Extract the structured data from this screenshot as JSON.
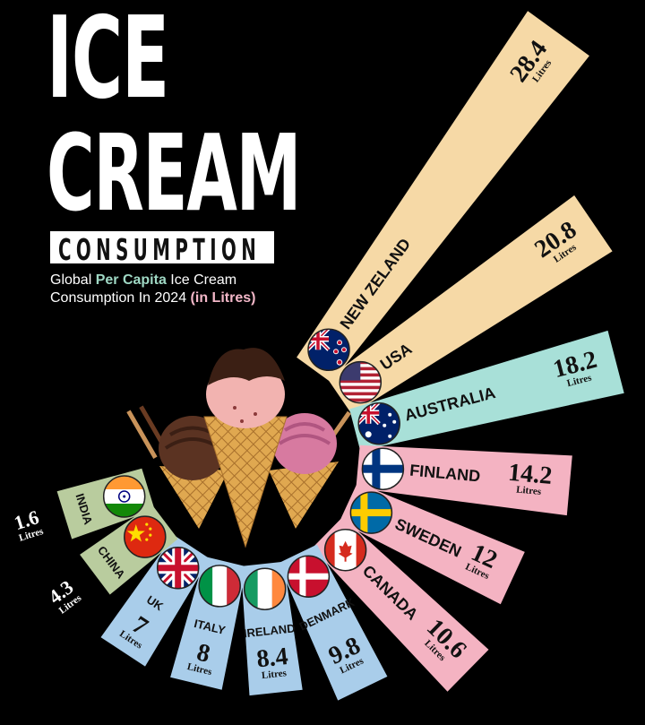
{
  "title": {
    "line1": "ICE",
    "line2": "CREAM",
    "line3": "CONSUMPTION",
    "subtitle_a": "Global ",
    "subtitle_b": "Per Capita",
    "subtitle_c": " Ice Cream Consumption In 2024 ",
    "subtitle_d": "(in Litres)"
  },
  "colors": {
    "beige": "#f6d9a6",
    "teal": "#a8e0d8",
    "pink": "#f4b3c2",
    "blue": "#a9cdea",
    "sage": "#b9cc9e",
    "accent_green": "#9fd8c4",
    "accent_pink": "#f3b7c8"
  },
  "chart_data": {
    "type": "bar",
    "layout": "radial",
    "title": "ICE CREAM CONSUMPTION",
    "value_unit": "Litres",
    "categories": [
      "NEW ZELAND",
      "USA",
      "AUSTRALIA",
      "FINLAND",
      "SWEDEN",
      "CANADA",
      "DENMARK",
      "IRELAND",
      "ITALY",
      "UK",
      "CHINA",
      "INDIA"
    ],
    "values": [
      28.4,
      20.8,
      18.2,
      14.2,
      12,
      10.6,
      9.8,
      8.4,
      8,
      7,
      4.3,
      1.6
    ],
    "bar_colors": [
      "#f6d9a6",
      "#f6d9a6",
      "#a8e0d8",
      "#f4b3c2",
      "#f4b3c2",
      "#f4b3c2",
      "#a9cdea",
      "#a9cdea",
      "#a9cdea",
      "#a9cdea",
      "#b9cc9e",
      "#b9cc9e"
    ],
    "flags": [
      "new-zealand-flag",
      "usa-flag",
      "australia-flag",
      "finland-flag",
      "sweden-flag",
      "canada-flag",
      "denmark-flag",
      "ireland-flag",
      "italy-flag",
      "uk-flag",
      "china-flag",
      "india-flag"
    ]
  }
}
